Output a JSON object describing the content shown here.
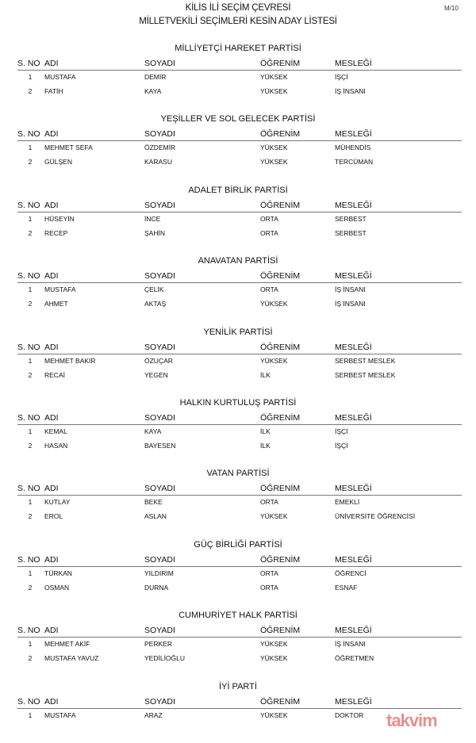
{
  "header": {
    "line1": "KİLİS İLİ SEÇİM ÇEVRESİ",
    "line2": "MİLLETVEKİLİ SEÇİMLERİ KESİN ADAY LİSTESİ",
    "code": "M/10"
  },
  "columns": [
    "S. NO",
    "ADI",
    "SOYADI",
    "ÖĞRENİM",
    "MESLEĞİ"
  ],
  "watermark": "takvim",
  "parties": [
    {
      "name": "MİLLİYETÇİ HAREKET PARTİSİ",
      "candidates": [
        [
          "1",
          "MUSTAFA",
          "DEMİR",
          "YÜKSEK",
          "İŞÇİ"
        ],
        [
          "2",
          "FATİH",
          "KAYA",
          "YÜKSEK",
          "İŞ İNSANI"
        ]
      ]
    },
    {
      "name": "YEŞİLLER VE SOL GELECEK PARTİSİ",
      "candidates": [
        [
          "1",
          "MEHMET SEFA",
          "ÖZDEMİR",
          "YÜKSEK",
          "MÜHENDİS"
        ],
        [
          "2",
          "GÜLŞEN",
          "KARASU",
          "YÜKSEK",
          "TERCÜMAN"
        ]
      ]
    },
    {
      "name": "ADALET BİRLİK PARTİSİ",
      "candidates": [
        [
          "1",
          "HÜSEYİN",
          "İNCE",
          "ORTA",
          "SERBEST"
        ],
        [
          "2",
          "RECEP",
          "ŞAHİN",
          "ORTA",
          "SERBEST"
        ]
      ]
    },
    {
      "name": "ANAVATAN PARTİSİ",
      "candidates": [
        [
          "1",
          "MUSTAFA",
          "ÇELİK",
          "ORTA",
          "İŞ İNSANI"
        ],
        [
          "2",
          "AHMET",
          "AKTAŞ",
          "YÜKSEK",
          "İŞ İNSANI"
        ]
      ]
    },
    {
      "name": "YENİLİK PARTİSİ",
      "candidates": [
        [
          "1",
          "MEHMET BAKIR",
          "ÖZUÇAR",
          "YÜKSEK",
          "SERBEST MESLEK"
        ],
        [
          "2",
          "RECAİ",
          "YEGEN",
          "İLK",
          "SERBEST MESLEK"
        ]
      ]
    },
    {
      "name": "HALKIN KURTULUŞ PARTİSİ",
      "candidates": [
        [
          "1",
          "KEMAL",
          "KAYA",
          "İLK",
          "İŞÇİ"
        ],
        [
          "2",
          "HASAN",
          "BAYESEN",
          "İLK",
          "İŞÇİ"
        ]
      ]
    },
    {
      "name": "VATAN PARTİSİ",
      "candidates": [
        [
          "1",
          "KUTLAY",
          "BEKE",
          "ORTA",
          "EMEKLİ"
        ],
        [
          "2",
          "EROL",
          "ASLAN",
          "YÜKSEK",
          "ÜNİVERSİTE ÖĞRENCİSİ"
        ]
      ]
    },
    {
      "name": "GÜÇ BİRLİĞİ PARTİSİ",
      "candidates": [
        [
          "1",
          "TÜRKAN",
          "YILDIRIM",
          "ORTA",
          "ÖĞRENCİ"
        ],
        [
          "2",
          "OSMAN",
          "DURNA",
          "ORTA",
          "ESNAF"
        ]
      ]
    },
    {
      "name": "CUMHURİYET HALK PARTİSİ",
      "candidates": [
        [
          "1",
          "MEHMET AKİF",
          "PERKER",
          "YÜKSEK",
          "İŞ İNSANI"
        ],
        [
          "2",
          "MUSTAFA YAVUZ",
          "YEDİLİOĞLU",
          "YÜKSEK",
          "ÖĞRETMEN"
        ]
      ]
    },
    {
      "name": "İYİ PARTİ",
      "candidates": [
        [
          "1",
          "MUSTAFA",
          "ARAZ",
          "YÜKSEK",
          "DOKTOR"
        ]
      ]
    }
  ]
}
